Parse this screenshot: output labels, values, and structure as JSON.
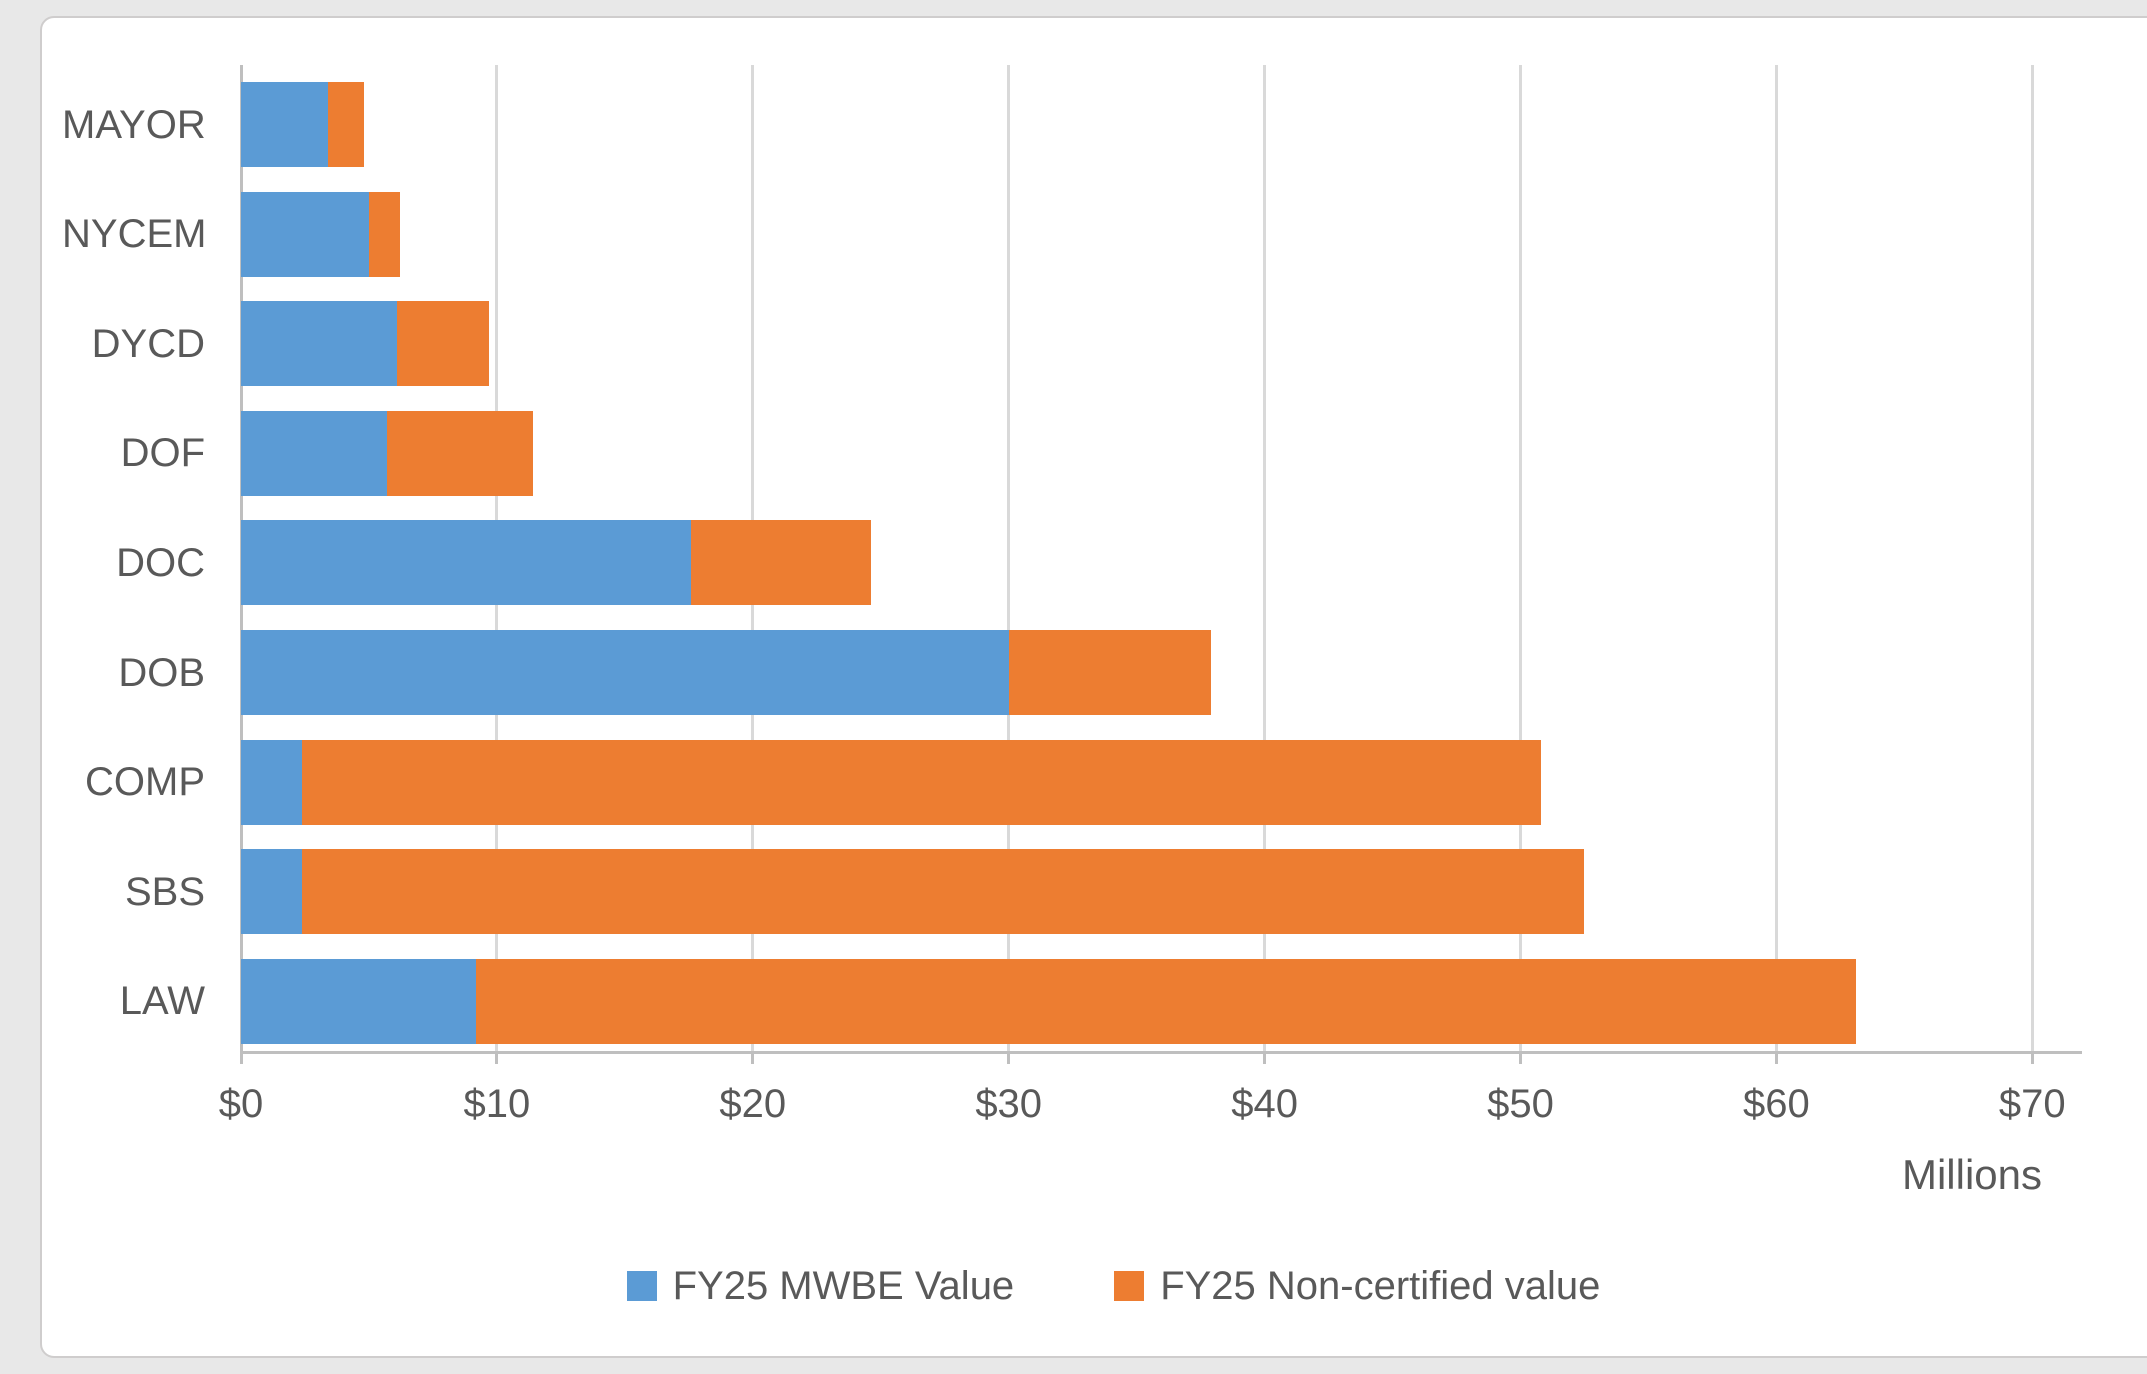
{
  "chart_data": {
    "type": "bar",
    "orientation": "horizontal",
    "stacked": true,
    "title": "",
    "categories_top_to_bottom": [
      "MAYOR",
      "NYCEM",
      "DYCD",
      "DOF",
      "DOC",
      "DOB",
      "COMP",
      "SBS",
      "LAW"
    ],
    "series": [
      {
        "name": "FY25 MWBE Value",
        "color": "#5B9BD5",
        "values": [
          3.4,
          5.0,
          6.1,
          5.7,
          17.6,
          30.0,
          2.4,
          2.4,
          9.2
        ]
      },
      {
        "name": "FY25 Non-certified value",
        "color": "#ED7D31",
        "values": [
          1.4,
          1.2,
          3.6,
          5.7,
          7.0,
          7.9,
          48.4,
          50.1,
          53.9
        ]
      }
    ],
    "stacked_totals": [
      4.8,
      6.2,
      9.7,
      11.4,
      24.6,
      37.9,
      50.8,
      52.5,
      63.1
    ],
    "x_axis": {
      "tick_labels": [
        "$0",
        "$10",
        "$20",
        "$30",
        "$40",
        "$50",
        "$60",
        "$70"
      ],
      "tick_values": [
        0,
        10,
        20,
        30,
        40,
        50,
        60,
        70
      ],
      "range": [
        0,
        70
      ],
      "unit_label": "Millions"
    },
    "y_axis": {
      "label": ""
    },
    "legend": {
      "position": "bottom",
      "entries": [
        "FY25 MWBE Value",
        "FY25 Non-certified value"
      ]
    },
    "grid": "vertical major gridlines on",
    "value_unit": "USD millions"
  },
  "colors": {
    "series_blue": "#5B9BD5",
    "series_orange": "#ED7D31",
    "gridline": "#D9D9D9",
    "axis_line": "#BFBFBF",
    "text": "#595959",
    "background": "#FFFFFF",
    "frame_border": "#CFCDCD"
  }
}
